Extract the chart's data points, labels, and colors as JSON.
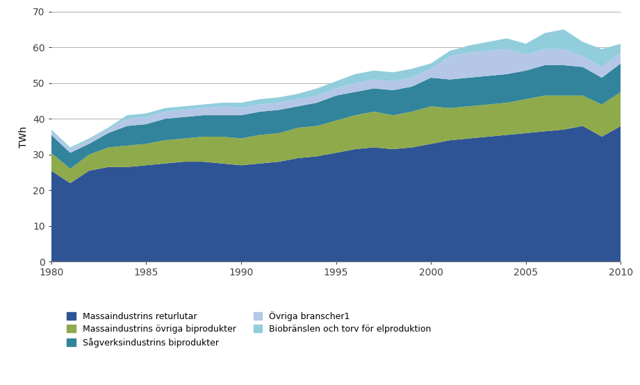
{
  "years": [
    1980,
    1981,
    1982,
    1983,
    1984,
    1985,
    1986,
    1987,
    1988,
    1989,
    1990,
    1991,
    1992,
    1993,
    1994,
    1995,
    1996,
    1997,
    1998,
    1999,
    2000,
    2001,
    2002,
    2003,
    2004,
    2005,
    2006,
    2007,
    2008,
    2009,
    2010
  ],
  "massaindustrins_returlutar": [
    25.5,
    22.0,
    25.5,
    26.5,
    26.5,
    27.0,
    27.5,
    28.0,
    28.0,
    27.5,
    27.0,
    27.5,
    28.0,
    29.0,
    29.5,
    30.5,
    31.5,
    32.0,
    31.5,
    32.0,
    33.0,
    34.0,
    34.5,
    35.0,
    35.5,
    36.0,
    36.5,
    37.0,
    38.0,
    35.0,
    38.0
  ],
  "massaindustrins_ovriga": [
    5.0,
    4.0,
    4.5,
    5.5,
    6.0,
    6.0,
    6.5,
    6.5,
    7.0,
    7.5,
    7.5,
    8.0,
    8.0,
    8.5,
    8.5,
    9.0,
    9.5,
    10.0,
    9.5,
    10.0,
    10.5,
    9.0,
    9.0,
    9.0,
    9.0,
    9.5,
    10.0,
    9.5,
    8.5,
    9.0,
    9.5
  ],
  "sagverksindustrins": [
    5.0,
    4.5,
    3.0,
    4.0,
    5.5,
    5.5,
    6.0,
    6.0,
    6.0,
    6.0,
    6.5,
    6.5,
    6.5,
    6.0,
    6.5,
    7.0,
    6.5,
    6.5,
    7.0,
    7.0,
    8.0,
    8.0,
    8.0,
    8.0,
    8.0,
    8.0,
    8.5,
    8.5,
    8.0,
    7.5,
    8.0
  ],
  "ovriga_branscher": [
    1.0,
    1.0,
    1.0,
    1.0,
    2.0,
    2.0,
    2.0,
    2.0,
    2.0,
    2.5,
    2.0,
    2.0,
    2.0,
    2.0,
    2.0,
    2.0,
    2.5,
    2.5,
    2.5,
    2.5,
    2.5,
    6.5,
    7.0,
    7.0,
    7.0,
    4.5,
    4.5,
    4.5,
    3.0,
    3.0,
    3.0
  ],
  "biobranslen_torv": [
    0.5,
    0.5,
    0.5,
    0.5,
    1.0,
    1.0,
    1.0,
    1.0,
    1.0,
    1.0,
    1.5,
    1.5,
    1.5,
    1.5,
    2.0,
    2.0,
    2.5,
    2.5,
    2.5,
    2.5,
    1.5,
    1.5,
    2.0,
    2.5,
    3.0,
    3.0,
    4.5,
    5.5,
    4.0,
    5.0,
    2.5
  ],
  "colors": {
    "massaindustrins_returlutar": "#2E5496",
    "massaindustrins_ovriga": "#8faa4b",
    "sagverksindustrins": "#31849b",
    "ovriga_branscher": "#b4c7e7",
    "biobranslen_torv": "#92cddc"
  },
  "labels": {
    "massaindustrins_returlutar": "Massaindustrins returlutar",
    "massaindustrins_ovriga": "Massaindustrins övriga biprodukter",
    "sagverksindustrins": "Sågverksindustrins biprodukter",
    "ovriga_branscher": "Övriga branscher1",
    "biobranslen_torv": "Biobränslen och torv för elproduktion"
  },
  "ylabel": "TWh",
  "ylim": [
    0,
    70
  ],
  "xlim": [
    1980,
    2010
  ],
  "yticks": [
    0,
    10,
    20,
    30,
    40,
    50,
    60,
    70
  ],
  "xticks": [
    1980,
    1985,
    1990,
    1995,
    2000,
    2005,
    2010
  ],
  "background_color": "#ffffff",
  "grid_color": "#b0b0b0"
}
